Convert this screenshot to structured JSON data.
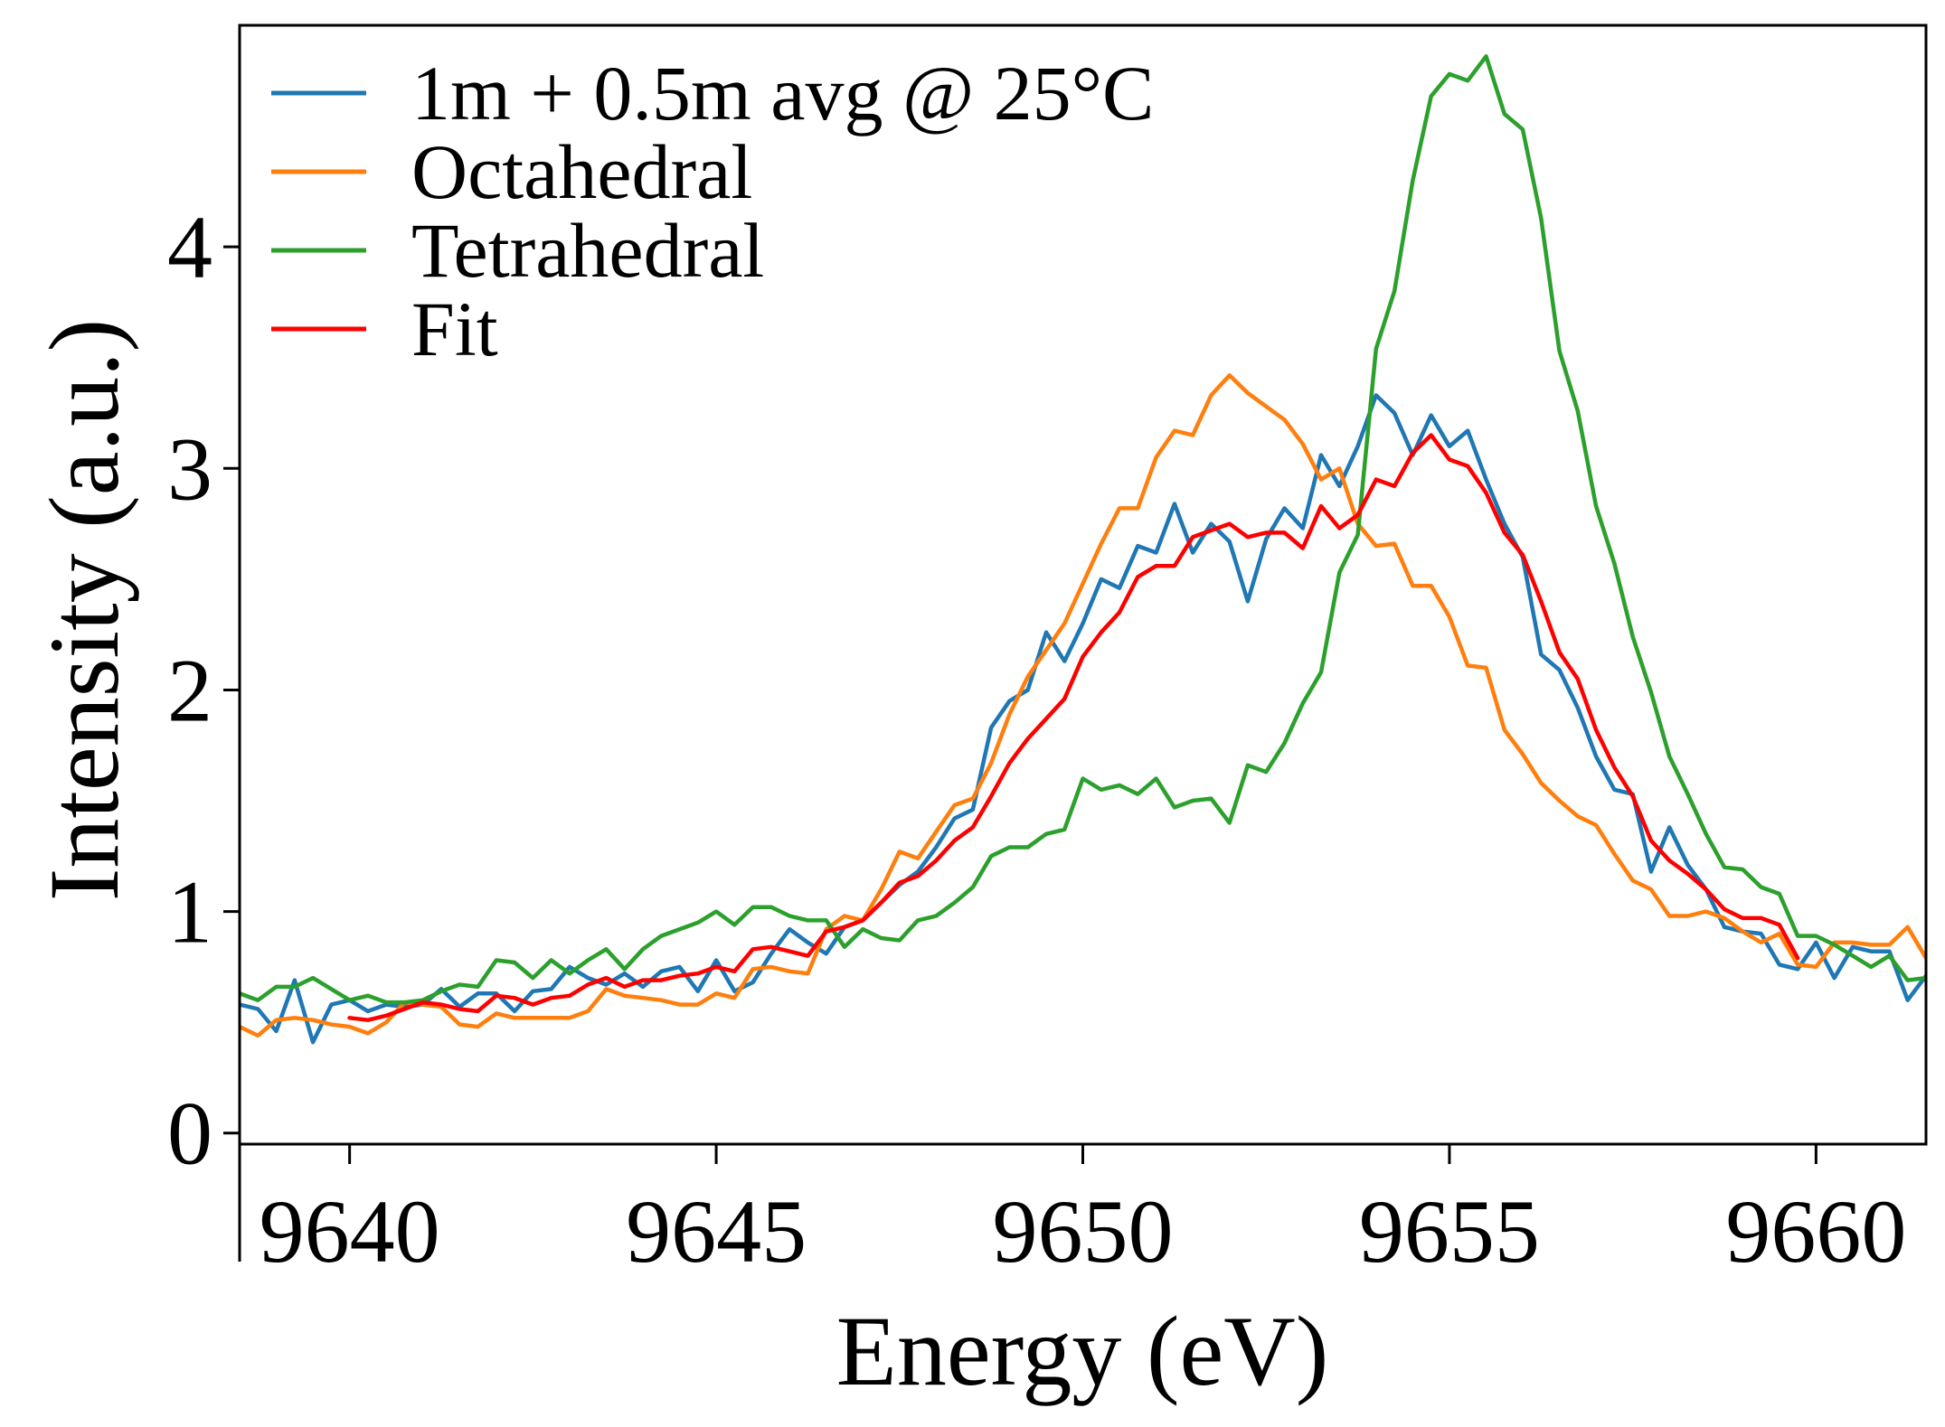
{
  "chart_data": {
    "type": "line",
    "xlabel": "Energy (eV)",
    "ylabel": "Intensity (a.u.)",
    "xlim": [
      9638.5,
      9661.5
    ],
    "ylim": [
      -0.05,
      5.0
    ],
    "xticks": [
      9640,
      9645,
      9650,
      9655,
      9660
    ],
    "xtick_labels": [
      "9640",
      "9645",
      "9650",
      "9655",
      "9660"
    ],
    "yticks": [
      0,
      1,
      2,
      3,
      4
    ],
    "ytick_labels": [
      "0",
      "1",
      "2",
      "3",
      "4"
    ],
    "grid": false,
    "legend_position": "top-left",
    "series": [
      {
        "name": "1m + 0.5m avg @ 25°C",
        "color": "#1f77b4",
        "x": [
          9638.5,
          9638.75,
          9639.0,
          9639.25,
          9639.5,
          9639.75,
          9640.0,
          9640.25,
          9640.5,
          9640.75,
          9641.0,
          9641.25,
          9641.5,
          9641.75,
          9642.0,
          9642.25,
          9642.5,
          9642.75,
          9643.0,
          9643.25,
          9643.5,
          9643.75,
          9644.0,
          9644.25,
          9644.5,
          9644.75,
          9645.0,
          9645.25,
          9645.5,
          9645.75,
          9646.0,
          9646.25,
          9646.5,
          9646.75,
          9647.0,
          9647.25,
          9647.5,
          9647.75,
          9648.0,
          9648.25,
          9648.5,
          9648.75,
          9649.0,
          9649.25,
          9649.5,
          9649.75,
          9650.0,
          9650.25,
          9650.5,
          9650.75,
          9651.0,
          9651.25,
          9651.5,
          9651.75,
          9652.0,
          9652.25,
          9652.5,
          9652.75,
          9653.0,
          9653.25,
          9653.5,
          9653.75,
          9654.0,
          9654.25,
          9654.5,
          9654.75,
          9655.0,
          9655.25,
          9655.5,
          9655.75,
          9656.0,
          9656.25,
          9656.5,
          9656.75,
          9657.0,
          9657.25,
          9657.5,
          9657.75,
          9658.0,
          9658.25,
          9658.5,
          9658.75,
          9659.0,
          9659.25,
          9659.5,
          9659.75,
          9660.0,
          9660.25,
          9660.5,
          9660.75,
          9661.0,
          9661.25,
          9661.5
        ],
        "y": [
          0.58,
          0.56,
          0.46,
          0.69,
          0.41,
          0.58,
          0.6,
          0.55,
          0.58,
          0.57,
          0.58,
          0.65,
          0.57,
          0.63,
          0.63,
          0.55,
          0.64,
          0.65,
          0.75,
          0.7,
          0.67,
          0.72,
          0.66,
          0.73,
          0.75,
          0.64,
          0.78,
          0.64,
          0.68,
          0.81,
          0.92,
          0.86,
          0.81,
          0.93,
          0.96,
          1.04,
          1.12,
          1.18,
          1.29,
          1.42,
          1.46,
          1.83,
          1.95,
          2.0,
          2.26,
          2.13,
          2.3,
          2.5,
          2.46,
          2.65,
          2.62,
          2.84,
          2.62,
          2.75,
          2.67,
          2.4,
          2.68,
          2.82,
          2.73,
          3.06,
          2.92,
          3.1,
          3.33,
          3.25,
          3.06,
          3.24,
          3.1,
          3.17,
          2.95,
          2.75,
          2.6,
          2.16,
          2.09,
          1.92,
          1.7,
          1.55,
          1.53,
          1.18,
          1.38,
          1.21,
          1.1,
          0.93,
          0.91,
          0.9,
          0.76,
          0.74,
          0.86,
          0.7,
          0.84,
          0.82,
          0.82,
          0.6,
          0.71
        ]
      },
      {
        "name": "Octahedral",
        "color": "#ff7f0e",
        "x": [
          9638.5,
          9638.75,
          9639.0,
          9639.25,
          9639.5,
          9639.75,
          9640.0,
          9640.25,
          9640.5,
          9640.75,
          9641.0,
          9641.25,
          9641.5,
          9641.75,
          9642.0,
          9642.25,
          9642.5,
          9642.75,
          9643.0,
          9643.25,
          9643.5,
          9643.75,
          9644.0,
          9644.25,
          9644.5,
          9644.75,
          9645.0,
          9645.25,
          9645.5,
          9645.75,
          9646.0,
          9646.25,
          9646.5,
          9646.75,
          9647.0,
          9647.25,
          9647.5,
          9647.75,
          9648.0,
          9648.25,
          9648.5,
          9648.75,
          9649.0,
          9649.25,
          9649.5,
          9649.75,
          9650.0,
          9650.25,
          9650.5,
          9650.75,
          9651.0,
          9651.25,
          9651.5,
          9651.75,
          9652.0,
          9652.25,
          9652.5,
          9652.75,
          9653.0,
          9653.25,
          9653.5,
          9653.75,
          9654.0,
          9654.25,
          9654.5,
          9654.75,
          9655.0,
          9655.25,
          9655.5,
          9655.75,
          9656.0,
          9656.25,
          9656.5,
          9656.75,
          9657.0,
          9657.25,
          9657.5,
          9657.75,
          9658.0,
          9658.25,
          9658.5,
          9658.75,
          9659.0,
          9659.25,
          9659.5,
          9659.75,
          9660.0,
          9660.25,
          9660.5,
          9660.75,
          9661.0,
          9661.25,
          9661.5
        ],
        "y": [
          0.48,
          0.44,
          0.51,
          0.52,
          0.51,
          0.49,
          0.48,
          0.45,
          0.5,
          0.59,
          0.58,
          0.57,
          0.49,
          0.48,
          0.54,
          0.52,
          0.52,
          0.52,
          0.52,
          0.55,
          0.65,
          0.62,
          0.61,
          0.6,
          0.58,
          0.58,
          0.63,
          0.61,
          0.74,
          0.75,
          0.73,
          0.72,
          0.92,
          0.98,
          0.96,
          1.1,
          1.27,
          1.24,
          1.36,
          1.48,
          1.51,
          1.67,
          1.89,
          2.06,
          2.18,
          2.3,
          2.48,
          2.66,
          2.82,
          2.82,
          3.05,
          3.17,
          3.15,
          3.33,
          3.42,
          3.34,
          3.28,
          3.22,
          3.11,
          2.95,
          3.0,
          2.75,
          2.65,
          2.66,
          2.47,
          2.47,
          2.33,
          2.11,
          2.1,
          1.82,
          1.71,
          1.58,
          1.5,
          1.43,
          1.39,
          1.26,
          1.14,
          1.1,
          0.98,
          0.98,
          1.0,
          0.97,
          0.91,
          0.86,
          0.9,
          0.76,
          0.75,
          0.86,
          0.86,
          0.85,
          0.85,
          0.93,
          0.79
        ]
      },
      {
        "name": "Tetrahedral",
        "color": "#2ca02c",
        "x": [
          9638.5,
          9638.75,
          9639.0,
          9639.25,
          9639.5,
          9639.75,
          9640.0,
          9640.25,
          9640.5,
          9640.75,
          9641.0,
          9641.25,
          9641.5,
          9641.75,
          9642.0,
          9642.25,
          9642.5,
          9642.75,
          9643.0,
          9643.25,
          9643.5,
          9643.75,
          9644.0,
          9644.25,
          9644.5,
          9644.75,
          9645.0,
          9645.25,
          9645.5,
          9645.75,
          9646.0,
          9646.25,
          9646.5,
          9646.75,
          9647.0,
          9647.25,
          9647.5,
          9647.75,
          9648.0,
          9648.25,
          9648.5,
          9648.75,
          9649.0,
          9649.25,
          9649.5,
          9649.75,
          9650.0,
          9650.25,
          9650.5,
          9650.75,
          9651.0,
          9651.25,
          9651.5,
          9651.75,
          9652.0,
          9652.25,
          9652.5,
          9652.75,
          9653.0,
          9653.25,
          9653.5,
          9653.75,
          9654.0,
          9654.25,
          9654.5,
          9654.75,
          9655.0,
          9655.25,
          9655.5,
          9655.75,
          9656.0,
          9656.25,
          9656.5,
          9656.75,
          9657.0,
          9657.25,
          9657.5,
          9657.75,
          9658.0,
          9658.25,
          9658.5,
          9658.75,
          9659.0,
          9659.25,
          9659.5,
          9659.75,
          9660.0,
          9660.25,
          9660.5,
          9660.75,
          9661.0,
          9661.25,
          9661.5
        ],
        "y": [
          0.63,
          0.6,
          0.66,
          0.66,
          0.7,
          0.65,
          0.6,
          0.62,
          0.59,
          0.59,
          0.6,
          0.64,
          0.67,
          0.66,
          0.78,
          0.77,
          0.7,
          0.78,
          0.72,
          0.78,
          0.83,
          0.74,
          0.83,
          0.89,
          0.92,
          0.95,
          1.0,
          0.94,
          1.02,
          1.02,
          0.98,
          0.96,
          0.96,
          0.84,
          0.92,
          0.88,
          0.87,
          0.96,
          0.98,
          1.04,
          1.11,
          1.25,
          1.29,
          1.29,
          1.35,
          1.37,
          1.6,
          1.55,
          1.57,
          1.53,
          1.6,
          1.47,
          1.5,
          1.51,
          1.4,
          1.66,
          1.63,
          1.76,
          1.94,
          2.08,
          2.53,
          2.7,
          3.54,
          3.8,
          4.3,
          4.68,
          4.78,
          4.75,
          4.86,
          4.6,
          4.53,
          4.13,
          3.53,
          3.26,
          2.83,
          2.57,
          2.24,
          1.99,
          1.7,
          1.53,
          1.35,
          1.2,
          1.19,
          1.11,
          1.08,
          0.89,
          0.89,
          0.85,
          0.8,
          0.75,
          0.8,
          0.69,
          0.7
        ]
      },
      {
        "name": "Fit",
        "color": "#ff0000",
        "x": [
          9640.0,
          9640.25,
          9640.5,
          9640.75,
          9641.0,
          9641.25,
          9641.5,
          9641.75,
          9642.0,
          9642.25,
          9642.5,
          9642.75,
          9643.0,
          9643.25,
          9643.5,
          9643.75,
          9644.0,
          9644.25,
          9644.5,
          9644.75,
          9645.0,
          9645.25,
          9645.5,
          9645.75,
          9646.0,
          9646.25,
          9646.5,
          9646.75,
          9647.0,
          9647.25,
          9647.5,
          9647.75,
          9648.0,
          9648.25,
          9648.5,
          9648.75,
          9649.0,
          9649.25,
          9649.5,
          9649.75,
          9650.0,
          9650.25,
          9650.5,
          9650.75,
          9651.0,
          9651.25,
          9651.5,
          9651.75,
          9652.0,
          9652.25,
          9652.5,
          9652.75,
          9653.0,
          9653.25,
          9653.5,
          9653.75,
          9654.0,
          9654.25,
          9654.5,
          9654.75,
          9655.0,
          9655.25,
          9655.5,
          9655.75,
          9656.0,
          9656.25,
          9656.5,
          9656.75,
          9657.0,
          9657.25,
          9657.5,
          9657.75,
          9658.0,
          9658.25,
          9658.5,
          9658.75,
          9659.0,
          9659.25,
          9659.5,
          9659.75
        ],
        "y": [
          0.52,
          0.51,
          0.53,
          0.56,
          0.59,
          0.58,
          0.56,
          0.55,
          0.62,
          0.61,
          0.58,
          0.61,
          0.62,
          0.67,
          0.7,
          0.66,
          0.69,
          0.69,
          0.71,
          0.72,
          0.75,
          0.73,
          0.83,
          0.84,
          0.82,
          0.8,
          0.91,
          0.93,
          0.96,
          1.04,
          1.13,
          1.16,
          1.23,
          1.32,
          1.38,
          1.52,
          1.67,
          1.78,
          1.87,
          1.96,
          2.15,
          2.26,
          2.35,
          2.51,
          2.56,
          2.56,
          2.69,
          2.72,
          2.75,
          2.69,
          2.71,
          2.71,
          2.64,
          2.83,
          2.73,
          2.79,
          2.95,
          2.92,
          3.07,
          3.15,
          3.04,
          3.01,
          2.89,
          2.71,
          2.61,
          2.4,
          2.17,
          2.05,
          1.82,
          1.65,
          1.52,
          1.32,
          1.23,
          1.17,
          1.1,
          1.01,
          0.97,
          0.97,
          0.94,
          0.79
        ]
      }
    ]
  }
}
